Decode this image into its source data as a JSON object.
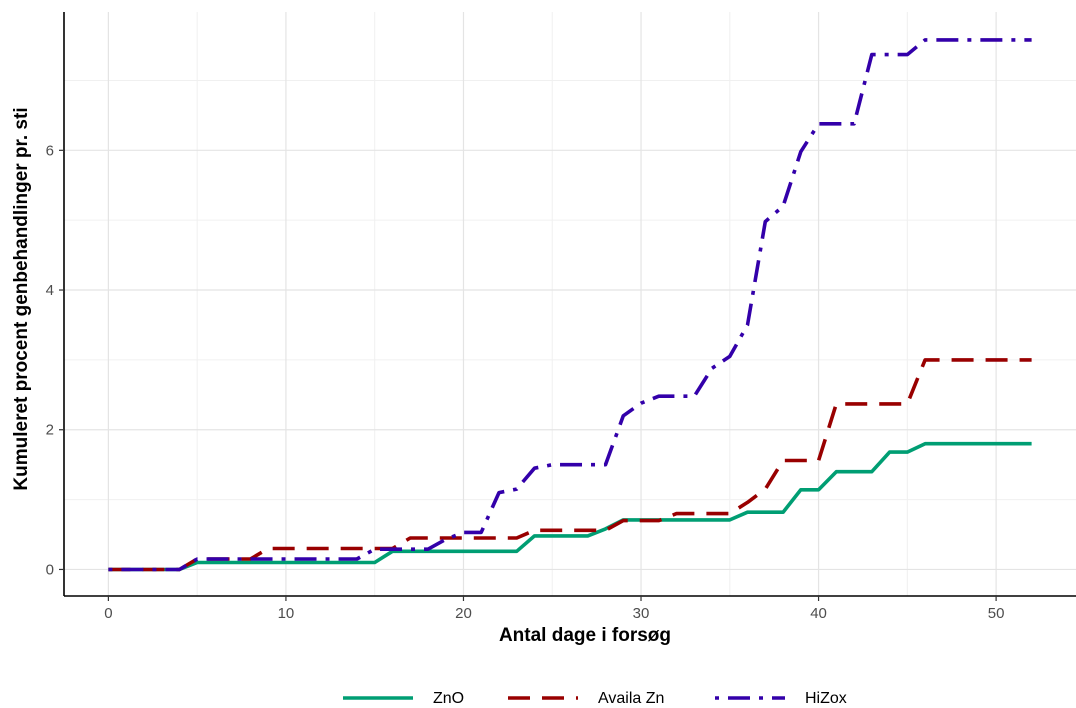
{
  "chart_data": {
    "type": "line",
    "title": "",
    "xlabel": "Antal dage i forsøg",
    "ylabel": "Kumuleret procent genbehandlinger pr. sti",
    "xlim": [
      -2.5,
      54.5
    ],
    "ylim": [
      -0.38,
      7.98
    ],
    "x_ticks": [
      0,
      10,
      20,
      30,
      40,
      50
    ],
    "y_ticks": [
      0,
      2,
      4,
      6
    ],
    "x_tick_labels": [
      "0",
      "10",
      "20",
      "30",
      "40",
      "50"
    ],
    "y_tick_labels": [
      "0",
      "2",
      "4",
      "6"
    ],
    "grid": true,
    "legend_position": "bottom",
    "series": [
      {
        "name": "ZnO",
        "color": "#009E73",
        "dash": "solid",
        "x": [
          0,
          4,
          5,
          15,
          16,
          23,
          24,
          27,
          28,
          29,
          35,
          36,
          38,
          39,
          40,
          41,
          43,
          44,
          45,
          46,
          52
        ],
        "y": [
          0,
          0,
          0.1,
          0.1,
          0.26,
          0.26,
          0.48,
          0.48,
          0.58,
          0.71,
          0.71,
          0.82,
          0.82,
          1.14,
          1.14,
          1.4,
          1.4,
          1.68,
          1.68,
          1.8,
          1.8
        ]
      },
      {
        "name": "Availa Zn",
        "color": "#990000",
        "dash": "dashed",
        "x": [
          0,
          4,
          5,
          8,
          9,
          16,
          17,
          23,
          24,
          28,
          29,
          31,
          32,
          35,
          36,
          37,
          38,
          40,
          41,
          45,
          46,
          52
        ],
        "y": [
          0,
          0,
          0.15,
          0.15,
          0.3,
          0.3,
          0.45,
          0.45,
          0.56,
          0.56,
          0.7,
          0.7,
          0.8,
          0.8,
          0.96,
          1.15,
          1.56,
          1.56,
          2.37,
          2.37,
          3.0,
          3.0
        ]
      },
      {
        "name": "HiZox",
        "color": "#3300AA",
        "dash": "dotdash",
        "x": [
          0,
          4,
          5,
          14,
          15,
          18,
          19,
          20,
          21,
          22,
          23,
          24,
          25,
          27,
          28,
          29,
          30,
          31,
          33,
          34,
          35,
          36,
          37,
          38,
          39,
          40,
          42,
          43,
          45,
          46,
          52
        ],
        "y": [
          0,
          0,
          0.15,
          0.15,
          0.29,
          0.29,
          0.43,
          0.53,
          0.53,
          1.1,
          1.15,
          1.45,
          1.5,
          1.5,
          1.5,
          2.2,
          2.38,
          2.48,
          2.48,
          2.88,
          3.05,
          3.5,
          4.98,
          5.2,
          5.98,
          6.38,
          6.38,
          7.37,
          7.37,
          7.58,
          7.58
        ]
      }
    ]
  }
}
